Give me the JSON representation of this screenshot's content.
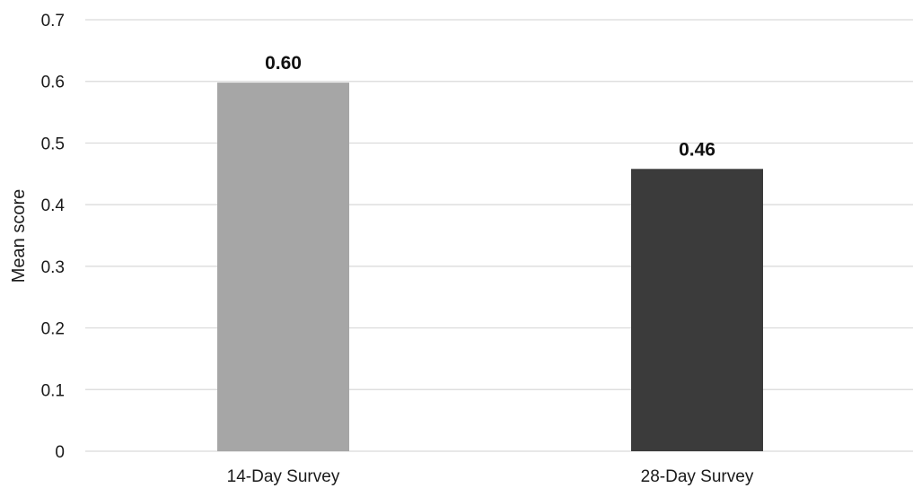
{
  "chart_data": {
    "type": "bar",
    "categories": [
      "14-Day Survey",
      "28-Day Survey"
    ],
    "values": [
      0.598,
      0.458
    ],
    "data_labels": [
      "0.60",
      "0.46"
    ],
    "bar_colors": [
      "#a6a6a6",
      "#3b3b3b"
    ],
    "title": "",
    "xlabel": "",
    "ylabel": "Mean score",
    "ylim": [
      0,
      0.7
    ],
    "yticks": [
      0,
      0.1,
      0.2,
      0.3,
      0.4,
      0.5,
      0.6,
      0.7
    ],
    "ytick_labels": [
      "0",
      "0.1",
      "0.2",
      "0.3",
      "0.4",
      "0.5",
      "0.6",
      "0.7"
    ],
    "grid": true,
    "legend": "none"
  }
}
